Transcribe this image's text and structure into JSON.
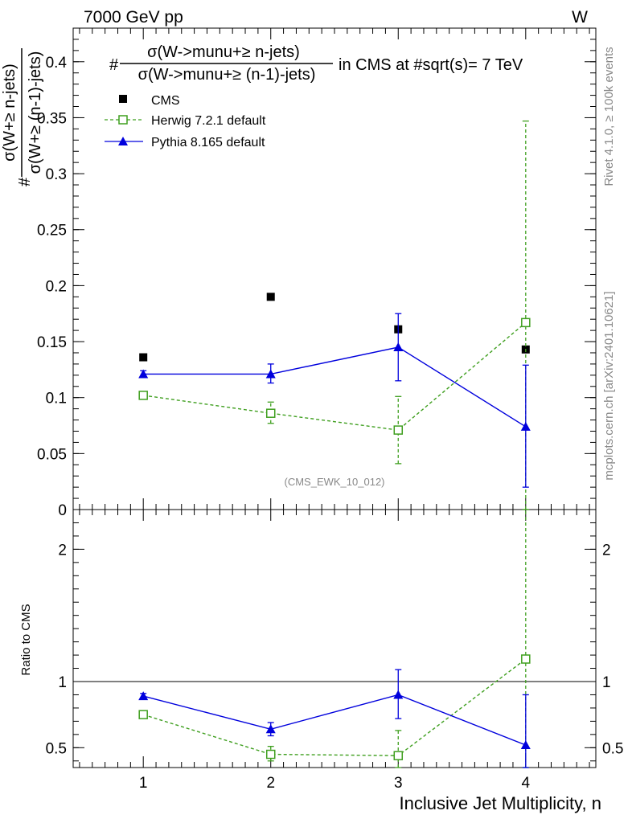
{
  "header": {
    "energy_label": "7000 GeV pp",
    "process_label": "W"
  },
  "side_labels": {
    "rivet": "Rivet 4.1.0, ≥ 100k events",
    "mcplots": "mcplots.cern.ch [arXiv:2401.10621]"
  },
  "chart_data": [
    {
      "type": "scatter",
      "panel": "main",
      "title_prefix": "#",
      "title_numerator": "σ(W->munu+≥ n-jets)",
      "title_denominator": "σ(W->munu+≥ (n-1)-jets)",
      "title_suffix": "in CMS at #sqrt(s)= 7 TeV",
      "ylabel_prefix": "#",
      "ylabel_numerator": "σ(W+≥ n-jets)",
      "ylabel_denominator": "σ(W+≥ (n-1)-jets)",
      "analysis_label": "(CMS_EWK_10_012)",
      "x": [
        1,
        2,
        3,
        4
      ],
      "xlim": [
        0.45,
        4.55
      ],
      "ylim": [
        0,
        0.43
      ],
      "yticks": [
        "0",
        "0.05",
        "0.1",
        "0.15",
        "0.2",
        "0.25",
        "0.3",
        "0.35",
        "0.4"
      ],
      "yticks_values": [
        0,
        0.05,
        0.1,
        0.15,
        0.2,
        0.25,
        0.3,
        0.35,
        0.4
      ],
      "series": [
        {
          "name": "CMS",
          "color": "#000000",
          "marker": "filled-square",
          "values": [
            0.136,
            0.19,
            0.161,
            0.143
          ]
        },
        {
          "name": "Herwig 7.2.1 default",
          "color": "#3f9f1f",
          "marker": "open-square",
          "line": "dashed",
          "values": [
            0.102,
            0.086,
            0.071,
            0.167
          ],
          "err_low": [
            0.102,
            0.077,
            0.041,
            0.0
          ],
          "err_high": [
            0.102,
            0.096,
            0.101,
            0.347
          ]
        },
        {
          "name": "Pythia 8.165 default",
          "color": "#0000dd",
          "marker": "filled-triangle",
          "line": "solid",
          "values": [
            0.121,
            0.121,
            0.145,
            0.074
          ],
          "err_low": [
            0.118,
            0.113,
            0.115,
            0.02
          ],
          "err_high": [
            0.124,
            0.13,
            0.175,
            0.129
          ]
        }
      ]
    },
    {
      "type": "scatter",
      "panel": "ratio",
      "ylabel": "Ratio to CMS",
      "xlabel": "Inclusive Jet Multiplicity, n",
      "x": [
        1,
        2,
        3,
        4
      ],
      "xticks": [
        "1",
        "2",
        "3",
        "4"
      ],
      "ylim": [
        0.35,
        2.3
      ],
      "yticks": [
        "0.5",
        "1",
        "2"
      ],
      "yticks_values": [
        0.5,
        1,
        2
      ],
      "reference": 1,
      "series": [
        {
          "name": "Herwig 7.2.1 default",
          "color": "#3f9f1f",
          "values": [
            0.75,
            0.45,
            0.44,
            1.17
          ],
          "err_low": [
            0.75,
            0.4,
            0.25,
            0.0
          ],
          "err_high": [
            0.75,
            0.51,
            0.63,
            2.43
          ]
        },
        {
          "name": "Pythia 8.165 default",
          "color": "#0000dd",
          "values": [
            0.89,
            0.64,
            0.9,
            0.52
          ],
          "err_low": [
            0.87,
            0.59,
            0.72,
            0.14
          ],
          "err_high": [
            0.91,
            0.69,
            1.09,
            0.9
          ]
        }
      ]
    }
  ]
}
